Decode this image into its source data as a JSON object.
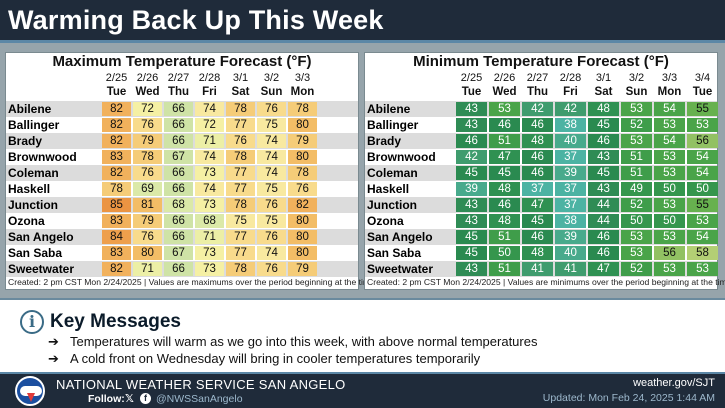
{
  "title": "Warming Back Up This Week",
  "max_table": {
    "title": "Maximum Temperature Forecast (°F)",
    "dates": [
      "2/25",
      "2/26",
      "2/27",
      "2/28",
      "3/1",
      "3/2",
      "3/3"
    ],
    "days": [
      "Tue",
      "Wed",
      "Thu",
      "Fri",
      "Sat",
      "Sun",
      "Mon"
    ],
    "rows": [
      {
        "city": "Abilene",
        "values": [
          82,
          72,
          66,
          74,
          78,
          76,
          78
        ]
      },
      {
        "city": "Ballinger",
        "values": [
          82,
          76,
          66,
          72,
          77,
          75,
          80
        ]
      },
      {
        "city": "Brady",
        "values": [
          82,
          79,
          66,
          71,
          76,
          74,
          79
        ]
      },
      {
        "city": "Brownwood",
        "values": [
          83,
          78,
          67,
          74,
          78,
          74,
          80
        ]
      },
      {
        "city": "Coleman",
        "values": [
          82,
          76,
          66,
          73,
          77,
          74,
          78
        ]
      },
      {
        "city": "Haskell",
        "values": [
          78,
          69,
          66,
          74,
          77,
          75,
          76
        ]
      },
      {
        "city": "Junction",
        "values": [
          85,
          81,
          68,
          73,
          78,
          76,
          82
        ]
      },
      {
        "city": "Ozona",
        "values": [
          83,
          79,
          66,
          68,
          75,
          75,
          80
        ]
      },
      {
        "city": "San Angelo",
        "values": [
          84,
          76,
          66,
          71,
          77,
          76,
          80
        ]
      },
      {
        "city": "San Saba",
        "values": [
          83,
          80,
          67,
          73,
          77,
          74,
          80
        ]
      },
      {
        "city": "Sweetwater",
        "values": [
          82,
          71,
          66,
          73,
          78,
          76,
          79
        ]
      }
    ],
    "footnote": "Created: 2 pm CST Mon 2/24/2025  |  Values are maximums over the period beginning at the time shown."
  },
  "min_table": {
    "title": "Minimum Temperature Forecast (°F)",
    "dates": [
      "2/25",
      "2/26",
      "2/27",
      "2/28",
      "3/1",
      "3/2",
      "3/3",
      "3/4"
    ],
    "days": [
      "Tue",
      "Wed",
      "Thu",
      "Fri",
      "Sat",
      "Sun",
      "Mon",
      "Tue"
    ],
    "rows": [
      {
        "city": "Abilene",
        "values": [
          43,
          53,
          42,
          42,
          48,
          53,
          54,
          55
        ]
      },
      {
        "city": "Ballinger",
        "values": [
          43,
          46,
          46,
          38,
          45,
          52,
          53,
          53
        ]
      },
      {
        "city": "Brady",
        "values": [
          46,
          51,
          48,
          40,
          46,
          53,
          54,
          56
        ]
      },
      {
        "city": "Brownwood",
        "values": [
          42,
          47,
          46,
          37,
          43,
          51,
          53,
          54
        ]
      },
      {
        "city": "Coleman",
        "values": [
          45,
          45,
          46,
          39,
          45,
          51,
          53,
          54
        ]
      },
      {
        "city": "Haskell",
        "values": [
          39,
          48,
          37,
          37,
          43,
          49,
          50,
          50
        ]
      },
      {
        "city": "Junction",
        "values": [
          43,
          46,
          47,
          37,
          44,
          52,
          53,
          55
        ]
      },
      {
        "city": "Ozona",
        "values": [
          43,
          48,
          45,
          38,
          44,
          50,
          50,
          53
        ]
      },
      {
        "city": "San Angelo",
        "values": [
          45,
          51,
          46,
          39,
          46,
          53,
          53,
          54
        ]
      },
      {
        "city": "San Saba",
        "values": [
          45,
          50,
          48,
          40,
          46,
          53,
          56,
          58
        ]
      },
      {
        "city": "Sweetwater",
        "values": [
          43,
          51,
          41,
          41,
          47,
          52,
          53,
          53
        ]
      }
    ],
    "footnote": "Created: 2 pm CST Mon 2/24/2025  |  Values are minimums over the period beginning at the time shown."
  },
  "colors": {
    "max_scale": {
      "66": "#cfe3a6",
      "68": "#dbe9a8",
      "70": "#ecefa6",
      "72": "#f5f0a4",
      "74": "#f8e9a0",
      "76": "#f8db8c",
      "78": "#f5cc78",
      "80": "#f3bd66",
      "82": "#f1b15c",
      "84": "#ee9f4c",
      "85": "#eb9442"
    },
    "min_scale": {
      "37": "#4cb3a3",
      "39": "#48aa8c",
      "41": "#3f9c6e",
      "43": "#2f8c55",
      "45": "#2a8a50",
      "47": "#2f9152",
      "49": "#35964d",
      "51": "#3f9d4a",
      "53": "#4aa449",
      "55": "#67b14f",
      "56": "#92c163",
      "58": "#b3cf74"
    },
    "min_text_light": "#ffffff",
    "min_text_dark": "#111111"
  },
  "key_messages": {
    "title": "Key Messages",
    "bullets": [
      "Temperatures will warm as we go into this week, with above normal temperatures",
      "A cold front on Wednesday will bring in cooler temperatures temporarily"
    ],
    "arrow_icon": "arrow-right-icon",
    "info_icon": "info-icon"
  },
  "footer": {
    "office": "NATIONAL WEATHER SERVICE SAN ANGELO",
    "follow_label": "Follow:",
    "handle": "@NWSSanAngelo",
    "website": "weather.gov/SJT",
    "updated": "Updated: Mon Feb 24, 2025 1:44 AM",
    "social_icons": [
      "x-icon",
      "facebook-icon"
    ]
  }
}
